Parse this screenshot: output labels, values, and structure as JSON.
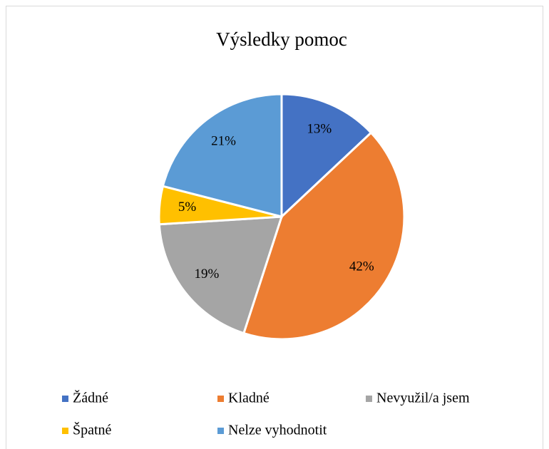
{
  "chart_data": {
    "type": "pie",
    "title": "Výsledky pomoc",
    "categories": [
      "Žádné",
      "Kladné",
      "Nevyužil/a jsem",
      "Špatné",
      "Nelze vyhodnotit"
    ],
    "values": [
      13,
      42,
      19,
      5,
      21
    ],
    "value_labels": [
      "13%",
      "42%",
      "19%",
      "5%",
      "21%"
    ],
    "colors": [
      "#4472c4",
      "#ed7d31",
      "#a5a5a5",
      "#ffc000",
      "#5b9bd5"
    ],
    "legend": "bottom"
  }
}
